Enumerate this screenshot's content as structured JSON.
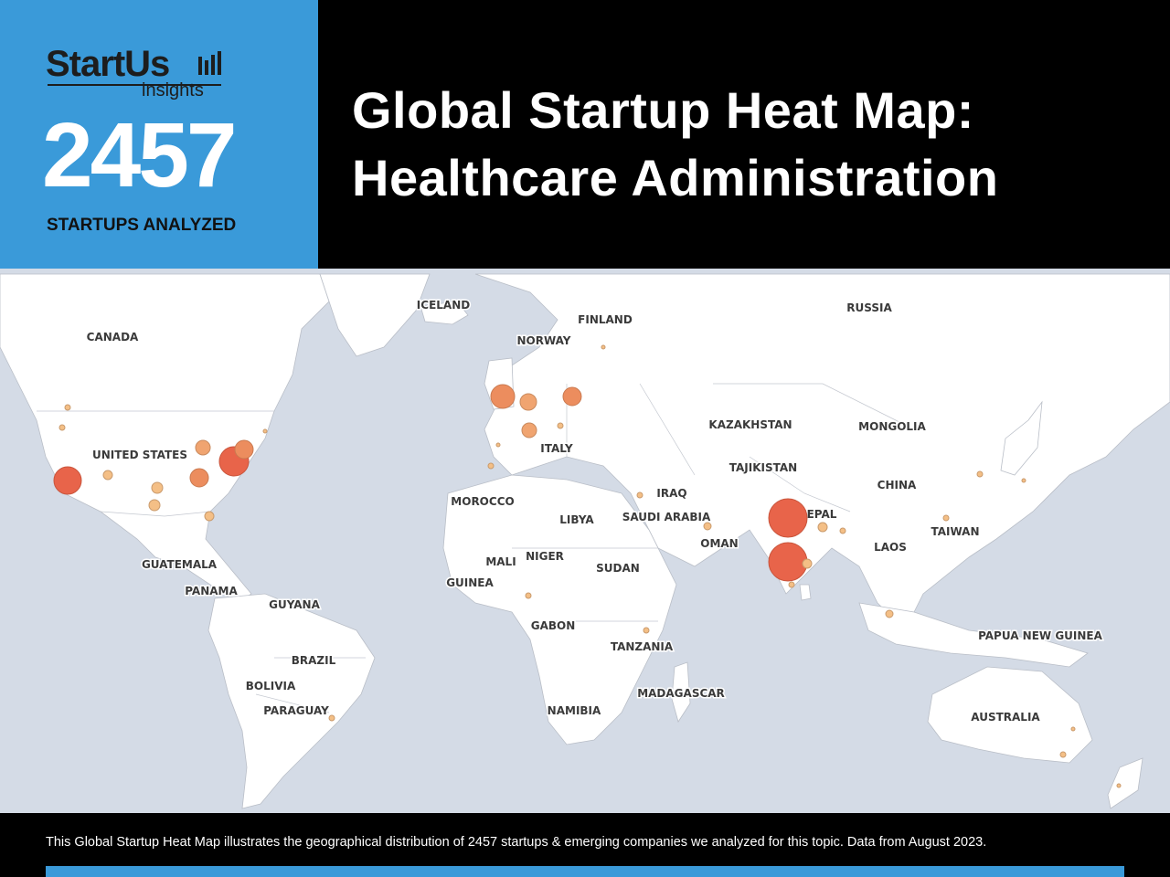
{
  "brand": {
    "logo_text": "StartUs",
    "logo_sub": "insights",
    "startup_count": "2457",
    "count_label": "STARTUPS ANALYZED"
  },
  "header": {
    "title_line1": "Global Startup Heat Map:",
    "title_line2": "Healthcare Administration"
  },
  "footer": {
    "text": "This Global Startup Heat Map illustrates the geographical distribution of 2457 startups & emerging companies we analyzed for this topic. Data from August 2023."
  },
  "colors": {
    "brand_blue": "#3a9ad9",
    "header_black": "#000000",
    "ocean": "#d4dbe6",
    "land": "#ffffff",
    "bubble_large": "#e8644a",
    "bubble_medium": "#ec8d5e",
    "bubble_small": "#f4bf86"
  },
  "map": {
    "labels": {
      "canada": "CANADA",
      "united_states": "UNITED STATES",
      "guatemala": "GUATEMALA",
      "panama": "PANAMA",
      "guyana": "GUYANA",
      "brazil": "BRAZIL",
      "bolivia": "BOLIVIA",
      "paraguay": "PARAGUAY",
      "iceland": "ICELAND",
      "norway": "NORWAY",
      "finland": "FINLAND",
      "russia": "RUSSIA",
      "italy": "ITALY",
      "morocco": "MOROCCO",
      "libya": "LIBYA",
      "mali": "MALI",
      "niger": "NIGER",
      "guinea": "GUINEA",
      "sudan": "SUDAN",
      "gabon": "GABON",
      "tanzania": "TANZANIA",
      "namibia": "NAMIBIA",
      "madagascar": "MADAGASCAR",
      "iraq": "IRAQ",
      "saudi_arabia": "SAUDI ARABIA",
      "oman": "OMAN",
      "kazakhstan": "KAZAKHSTAN",
      "tajikistan": "TAJIKISTAN",
      "mongolia": "MONGOLIA",
      "china": "CHINA",
      "nepal": "NEPAL",
      "taiwan": "TAIWAN",
      "laos": "LAOS",
      "papua_new_guinea": "PAPUA NEW GUINEA",
      "australia": "AUSTRALIA"
    }
  }
}
